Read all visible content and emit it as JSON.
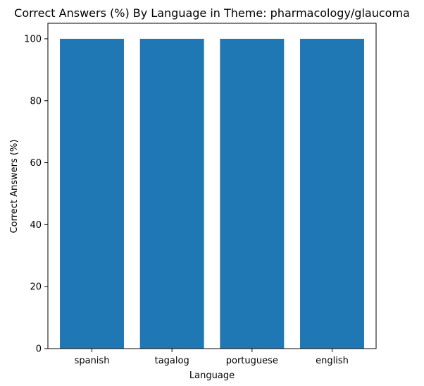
{
  "chart_data": {
    "type": "bar",
    "title": "Correct Answers (%) By Language in Theme: pharmacology/glaucoma",
    "xlabel": "Language",
    "ylabel": "Correct Answers (%)",
    "categories": [
      "spanish",
      "tagalog",
      "portuguese",
      "english"
    ],
    "values": [
      100,
      100,
      100,
      100
    ],
    "ylim": [
      0,
      105
    ],
    "yticks": [
      0,
      20,
      40,
      60,
      80,
      100
    ],
    "grid": false,
    "legend": "none",
    "bar_color": "#1f77b4"
  }
}
